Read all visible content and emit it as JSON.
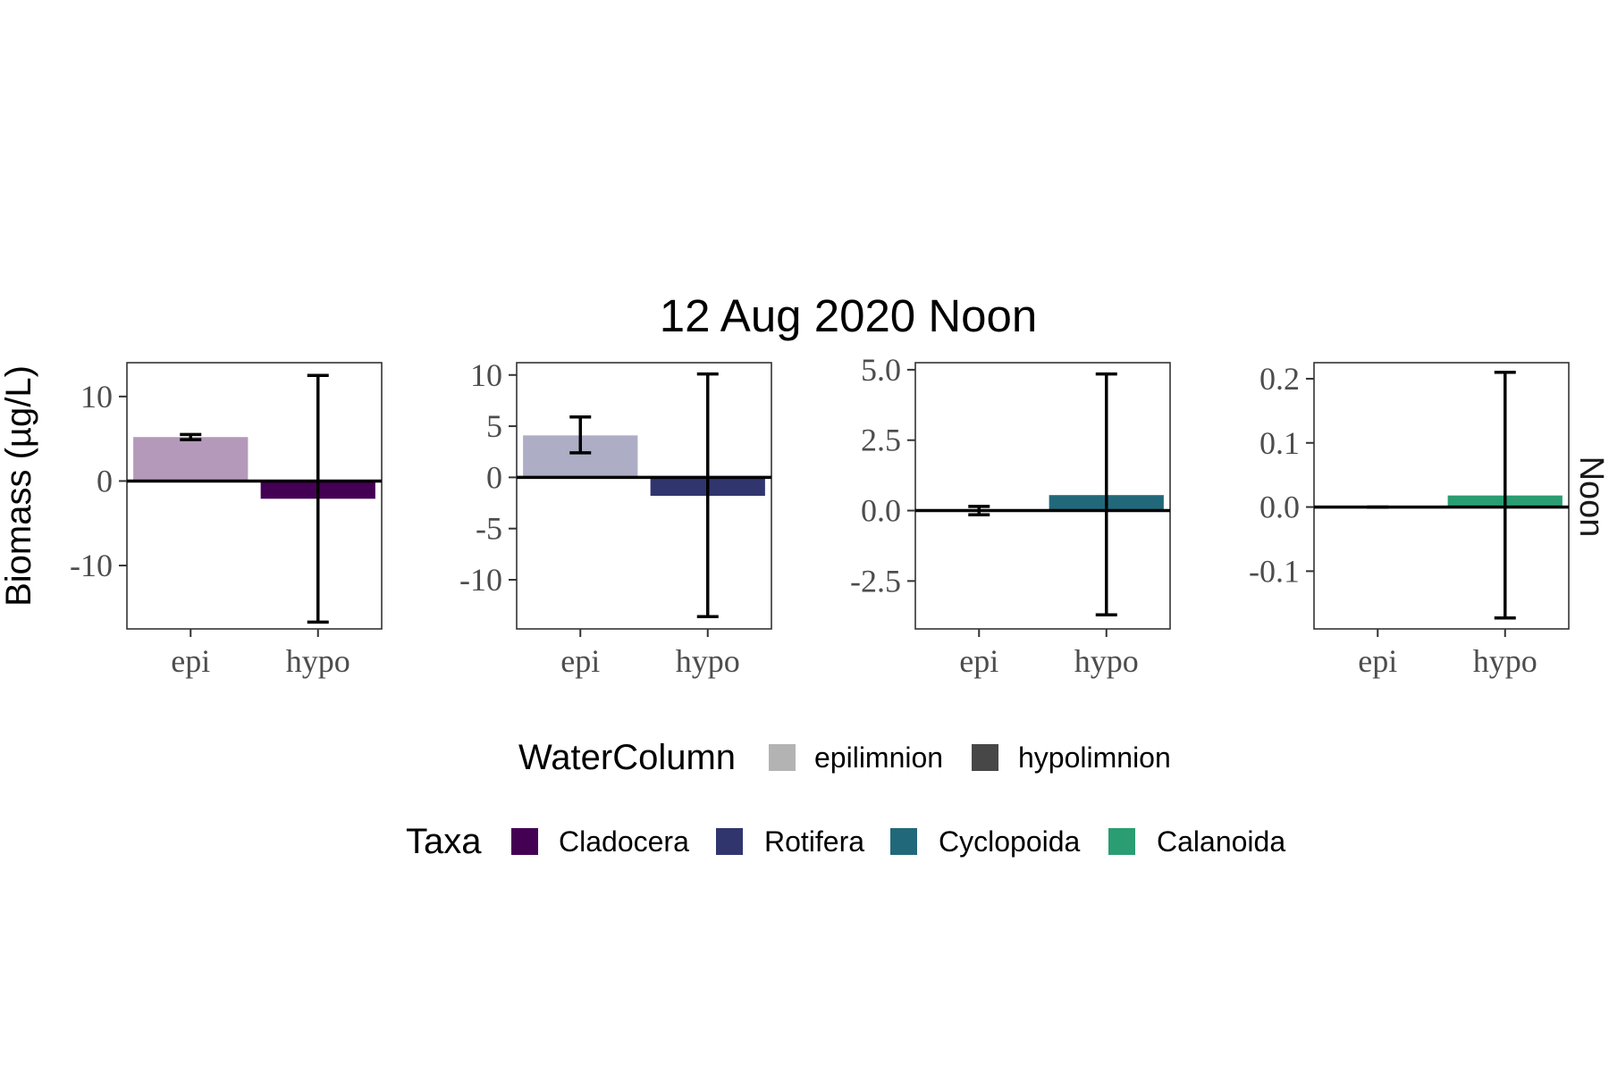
{
  "chart_data": {
    "type": "bar",
    "title": "12 Aug 2020 Noon",
    "ylabel": "Biomass (µg/L)",
    "strip_label": "Noon",
    "categories": [
      "epi",
      "hypo"
    ],
    "panels": [
      {
        "taxon": "Cladocera",
        "color": "#440154",
        "ylim": [
          -17.5,
          14
        ],
        "yticks": [
          -10,
          0,
          10
        ],
        "tick_labels": [
          "-10",
          "0",
          "10"
        ],
        "values": [
          5.2,
          -2.1
        ],
        "error_low": [
          4.9,
          -16.7
        ],
        "error_high": [
          5.5,
          12.5
        ]
      },
      {
        "taxon": "Rotifera",
        "color": "#31356e",
        "ylim": [
          -14.8,
          11.2
        ],
        "yticks": [
          -10,
          -5,
          0,
          5,
          10
        ],
        "tick_labels": [
          "-10",
          "-5",
          "0",
          "5",
          "10"
        ],
        "values": [
          4.1,
          -1.8
        ],
        "error_low": [
          2.4,
          -13.6
        ],
        "error_high": [
          5.9,
          10.1
        ]
      },
      {
        "taxon": "Cyclopoida",
        "color": "#21697a",
        "ylim": [
          -4.2,
          5.25
        ],
        "yticks": [
          -2.5,
          0.0,
          2.5,
          5.0
        ],
        "tick_labels": [
          "-2.5",
          "0.0",
          "2.5",
          "5.0"
        ],
        "values": [
          0.0,
          0.55
        ],
        "error_low": [
          -0.15,
          -3.7
        ],
        "error_high": [
          0.15,
          4.85
        ]
      },
      {
        "taxon": "Calanoida",
        "color": "#2a9d73",
        "ylim": [
          -0.19,
          0.225
        ],
        "yticks": [
          -0.1,
          0.0,
          0.1,
          0.2
        ],
        "tick_labels": [
          "-0.1",
          "0.0",
          "0.1",
          "0.2"
        ],
        "values": [
          0.0,
          0.018
        ],
        "error_low": [
          0.0,
          -0.173
        ],
        "error_high": [
          0.0,
          0.21
        ]
      }
    ],
    "legends": [
      {
        "title": "WaterColumn",
        "items": [
          {
            "label": "epilimnion",
            "color": "#b3b3b3"
          },
          {
            "label": "hypolimnion",
            "color": "#474747"
          }
        ]
      },
      {
        "title": "Taxa",
        "items": [
          {
            "label": "Cladocera",
            "color": "#440154"
          },
          {
            "label": "Rotifera",
            "color": "#31356e"
          },
          {
            "label": "Cyclopoida",
            "color": "#21697a"
          },
          {
            "label": "Calanoida",
            "color": "#2a9d73"
          }
        ]
      }
    ],
    "epi_alpha": 0.4,
    "legend_position": "bottom",
    "grid": false
  }
}
